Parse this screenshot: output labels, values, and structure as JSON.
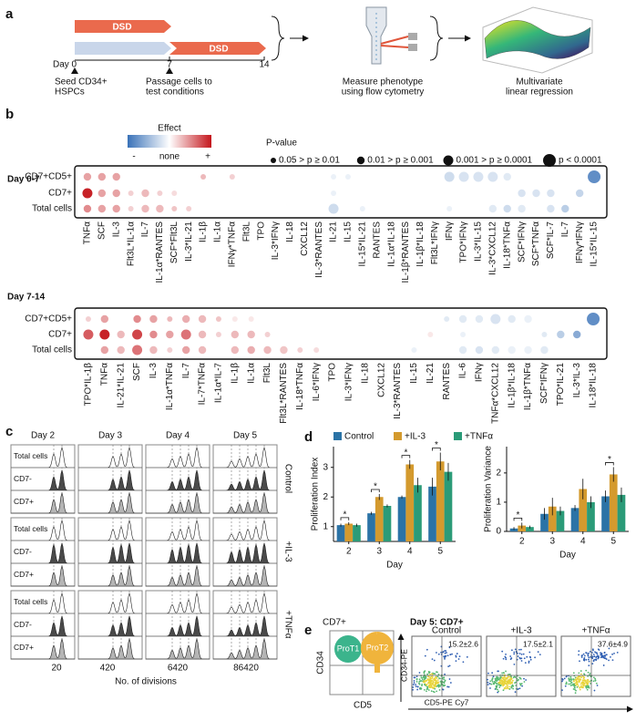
{
  "panel_a": {
    "label": "a",
    "bar1": "DSD",
    "bar2": "DSD",
    "timeline": [
      "Day 0",
      "7",
      "14"
    ],
    "seed": [
      "Seed CD34+",
      "HSPCs"
    ],
    "passage": [
      "Passage cells to",
      "test conditions"
    ],
    "measure": [
      "Measure phenotype",
      "using flow cytometry"
    ],
    "regression": [
      "Multivariate",
      "linear regression"
    ]
  },
  "panel_b": {
    "label": "b",
    "effect_legend": {
      "title": "Effect",
      "labels": [
        "-",
        "none",
        "+"
      ],
      "range": [
        -1,
        1
      ]
    },
    "pvalue_legend": {
      "title": "P-value",
      "levels": [
        "0.05 > p ≥ 0.01",
        "0.01 > p ≥ 0.001",
        "0.001 > p ≥ 0.0001",
        "p < 0.0001"
      ]
    },
    "rows": [
      "CD7+CD5+",
      "CD7+",
      "Total cells"
    ],
    "heatmaps": [
      {
        "title": "Day 0-7",
        "columns": [
          "TNFα",
          "SCF",
          "IL-3",
          "Flt3L*IL-1α",
          "IL-7",
          "IL-1α*RANTES",
          "SCF*Flt3L",
          "IL-3*IL-21",
          "IL-1β",
          "IL-1α",
          "IFNγ*TNFα",
          "Flt3L",
          "TPO",
          "IL-3*IFNγ",
          "IL-18",
          "CXCL12",
          "IL-3*RANTES",
          "IL-21",
          "IL-15",
          "IL-15*IL-21",
          "RANTES",
          "IL-1α*IL-18",
          "IL-1β*RANTES",
          "IL-1β*IL-18",
          "Flt3L*IFNγ",
          "IFNγ",
          "TPO*IFNγ",
          "IL-3*IL-15",
          "IL-3*CXCL12",
          "IL-18*TNFα",
          "SCF*IFNγ",
          "SCF*TNFα",
          "SCF*IL-7",
          "IL-7",
          "IFNγ*IFNγ",
          "IL-15*IL-15"
        ],
        "dots": [
          [
            0,
            0,
            0.4,
            1
          ],
          [
            0,
            1,
            0.4,
            1
          ],
          [
            0,
            2,
            0.4,
            1
          ],
          [
            0,
            8,
            0.3,
            0
          ],
          [
            0,
            10,
            0.2,
            0
          ],
          [
            0,
            17,
            -0.1,
            0
          ],
          [
            0,
            18,
            -0.1,
            0
          ],
          [
            0,
            25,
            -0.25,
            2
          ],
          [
            0,
            26,
            -0.2,
            2
          ],
          [
            0,
            27,
            -0.2,
            2
          ],
          [
            0,
            28,
            -0.2,
            2
          ],
          [
            0,
            29,
            -0.15,
            1
          ],
          [
            0,
            35,
            -0.8,
            3
          ],
          [
            1,
            0,
            0.95,
            2
          ],
          [
            1,
            1,
            0.4,
            1
          ],
          [
            1,
            2,
            0.4,
            1
          ],
          [
            1,
            3,
            0.2,
            0
          ],
          [
            1,
            4,
            0.3,
            1
          ],
          [
            1,
            5,
            0.2,
            0
          ],
          [
            1,
            6,
            0.15,
            0
          ],
          [
            1,
            17,
            -0.1,
            0
          ],
          [
            1,
            30,
            -0.2,
            1
          ],
          [
            1,
            31,
            -0.2,
            1
          ],
          [
            1,
            32,
            -0.2,
            1
          ],
          [
            1,
            34,
            -0.3,
            1
          ],
          [
            2,
            0,
            0.5,
            1
          ],
          [
            2,
            1,
            0.4,
            1
          ],
          [
            2,
            2,
            0.4,
            1
          ],
          [
            2,
            3,
            0.2,
            0
          ],
          [
            2,
            4,
            0.3,
            1
          ],
          [
            2,
            5,
            0.3,
            1
          ],
          [
            2,
            6,
            0.25,
            0
          ],
          [
            2,
            7,
            0.2,
            0
          ],
          [
            2,
            17,
            -0.25,
            2
          ],
          [
            2,
            19,
            -0.1,
            0
          ],
          [
            2,
            25,
            -0.1,
            0
          ],
          [
            2,
            28,
            -0.15,
            1
          ],
          [
            2,
            29,
            -0.25,
            1
          ],
          [
            2,
            30,
            -0.15,
            1
          ],
          [
            2,
            32,
            -0.2,
            1
          ],
          [
            2,
            33,
            -0.35,
            1
          ]
        ]
      },
      {
        "title": "Day 7-14",
        "columns": [
          "TPO*IL-1β",
          "TNFα",
          "IL-21*IL-21",
          "SCF",
          "IL-3",
          "IL-1α*TNFα",
          "IL-7",
          "IL-7*TNFα",
          "IL-1α*IL-7",
          "IL-1β",
          "IL-1α",
          "Flt3L",
          "Flt3L*RANTES",
          "IL-18*TNFα",
          "IL-6*IFNγ",
          "TPO",
          "IL-3*IFNγ",
          "IL-18",
          "CXCL12",
          "IL-3*RANTES",
          "IL-15",
          "IL-21",
          "RANTES",
          "IL-6",
          "IFNγ",
          "TNFα*CXCL12",
          "IL-1β*IL-18",
          "IL-1β*TNFα",
          "SCF*IFNγ",
          "TPO*IL-21",
          "IL-3*IL-3",
          "IL-18*IL-18"
        ],
        "dots": [
          [
            0,
            0,
            0.2,
            0
          ],
          [
            0,
            1,
            0.4,
            1
          ],
          [
            0,
            3,
            0.5,
            1
          ],
          [
            0,
            4,
            0.4,
            1
          ],
          [
            0,
            5,
            0.3,
            0
          ],
          [
            0,
            6,
            0.35,
            1
          ],
          [
            0,
            7,
            0.3,
            1
          ],
          [
            0,
            8,
            0.25,
            0
          ],
          [
            0,
            9,
            0.1,
            0
          ],
          [
            0,
            10,
            0.1,
            0
          ],
          [
            0,
            22,
            -0.15,
            0
          ],
          [
            0,
            23,
            -0.15,
            1
          ],
          [
            0,
            24,
            -0.15,
            1
          ],
          [
            0,
            25,
            -0.2,
            2
          ],
          [
            0,
            26,
            -0.15,
            1
          ],
          [
            0,
            27,
            -0.1,
            1
          ],
          [
            0,
            31,
            -0.8,
            3
          ],
          [
            1,
            0,
            0.7,
            2
          ],
          [
            1,
            1,
            0.95,
            2
          ],
          [
            1,
            2,
            0.3,
            1
          ],
          [
            1,
            3,
            0.8,
            2
          ],
          [
            1,
            4,
            0.5,
            1
          ],
          [
            1,
            5,
            0.4,
            1
          ],
          [
            1,
            6,
            0.6,
            2
          ],
          [
            1,
            7,
            0.3,
            1
          ],
          [
            1,
            8,
            0.2,
            0
          ],
          [
            1,
            9,
            0.3,
            1
          ],
          [
            1,
            10,
            0.3,
            1
          ],
          [
            1,
            11,
            0.2,
            0
          ],
          [
            1,
            21,
            0.1,
            0
          ],
          [
            1,
            23,
            -0.1,
            0
          ],
          [
            1,
            28,
            -0.15,
            0
          ],
          [
            1,
            29,
            -0.35,
            1
          ],
          [
            1,
            30,
            -0.6,
            1
          ],
          [
            2,
            1,
            0.4,
            1
          ],
          [
            2,
            2,
            0.3,
            1
          ],
          [
            2,
            3,
            0.6,
            2
          ],
          [
            2,
            4,
            0.3,
            1
          ],
          [
            2,
            5,
            0.2,
            0
          ],
          [
            2,
            6,
            0.4,
            1
          ],
          [
            2,
            7,
            0.3,
            1
          ],
          [
            2,
            9,
            0.3,
            1
          ],
          [
            2,
            10,
            0.35,
            1
          ],
          [
            2,
            11,
            0.3,
            1
          ],
          [
            2,
            12,
            0.25,
            1
          ],
          [
            2,
            13,
            0.2,
            0
          ],
          [
            2,
            14,
            0.15,
            0
          ],
          [
            2,
            20,
            -0.1,
            0
          ],
          [
            2,
            23,
            -0.15,
            1
          ],
          [
            2,
            24,
            -0.2,
            1
          ],
          [
            2,
            25,
            -0.15,
            1
          ],
          [
            2,
            26,
            -0.1,
            1
          ],
          [
            2,
            27,
            -0.1,
            1
          ],
          [
            2,
            28,
            -0.15,
            1
          ]
        ]
      }
    ]
  },
  "panel_c": {
    "label": "c",
    "days": [
      "Day 2",
      "Day 3",
      "Day 4",
      "Day 5"
    ],
    "conditions": [
      "Control",
      "+IL-3",
      "+TNFα"
    ],
    "rows": [
      "Total cells",
      "CD7-",
      "CD7+"
    ],
    "xticks": [
      "20",
      "420",
      "6420",
      "86420"
    ],
    "xlabel": "No. of divisions"
  },
  "chart_data": [
    {
      "type": "bar",
      "ylabel": "Proliferation Index",
      "xlabel": "Day",
      "categories": [
        "2",
        "3",
        "4",
        "5"
      ],
      "ylim": [
        0.5,
        3.7
      ],
      "yticks": [
        1,
        2,
        3
      ],
      "series": [
        {
          "name": "Control",
          "color": "#2b73a6",
          "values": [
            1.05,
            1.45,
            2.0,
            2.35
          ],
          "errors": [
            0.05,
            0.05,
            0.05,
            0.3
          ]
        },
        {
          "name": "+IL-3",
          "color": "#d49a2e",
          "values": [
            1.1,
            2.0,
            3.1,
            3.2
          ],
          "errors": [
            0.05,
            0.1,
            0.15,
            0.3
          ]
        },
        {
          "name": "+TNFα",
          "color": "#2b9b78",
          "values": [
            1.05,
            1.7,
            2.4,
            2.85
          ],
          "errors": [
            0.05,
            0.05,
            0.25,
            0.3
          ]
        }
      ],
      "significance": [
        {
          "text": "*",
          "category": 0
        },
        {
          "text": "*",
          "category": 1
        },
        {
          "text": "*",
          "category": 2
        },
        {
          "text": "*",
          "category": 3
        }
      ]
    },
    {
      "type": "bar",
      "ylabel": "Proliferation Variance",
      "xlabel": "Day",
      "categories": [
        "2",
        "3",
        "4",
        "5"
      ],
      "ylim": [
        0,
        2.9
      ],
      "yticks": [
        0,
        1,
        2
      ],
      "series": [
        {
          "color": "#2b73a6",
          "values": [
            0.1,
            0.6,
            0.8,
            1.2
          ],
          "errors": [
            0.05,
            0.2,
            0.1,
            0.2
          ]
        },
        {
          "color": "#d49a2e",
          "values": [
            0.2,
            0.85,
            1.45,
            1.95
          ],
          "errors": [
            0.1,
            0.3,
            0.35,
            0.25
          ]
        },
        {
          "color": "#2b9b78",
          "values": [
            0.15,
            0.7,
            1.0,
            1.25
          ],
          "errors": [
            0.05,
            0.15,
            0.2,
            0.25
          ]
        }
      ],
      "significance": [
        {
          "text": "*",
          "category": 0
        },
        {
          "text": "*",
          "category": 3
        }
      ]
    }
  ],
  "panel_d": {
    "label": "d"
  },
  "panel_e": {
    "label": "e",
    "schematic_title": "CD7+",
    "populations": [
      "ProT1",
      "ProT2"
    ],
    "schematic_y": "CD34",
    "schematic_x": "CD5",
    "title": "Day 5: CD7+",
    "conditions": [
      "Control",
      "+IL-3",
      "+TNFα"
    ],
    "percentages": [
      "15.2±2.6",
      "17.5±2.1",
      "37.6±4.9"
    ],
    "ylabel": "CD34-PE",
    "xlabel": "CD5-PE Cy7"
  }
}
